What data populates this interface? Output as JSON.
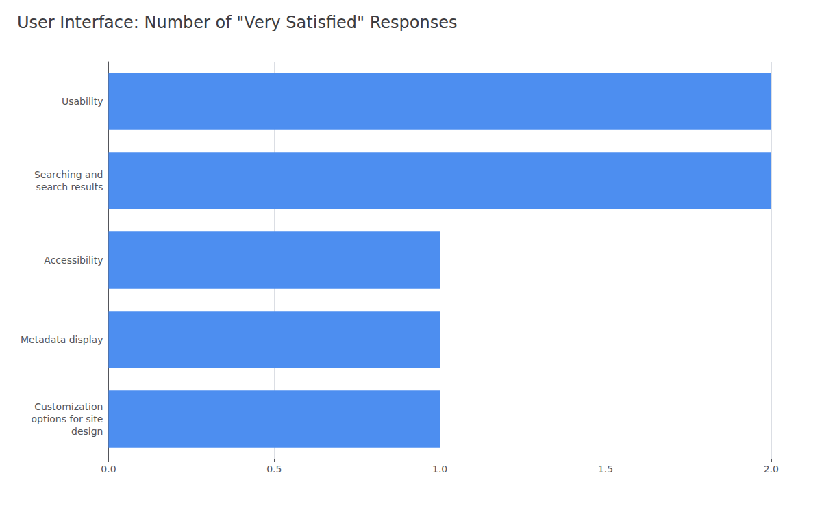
{
  "chart_data": {
    "type": "bar",
    "orientation": "horizontal",
    "title": "User Interface: Number of \"Very Satisfied\" Responses",
    "categories": [
      "Customization\noptions for site\ndesign",
      "Metadata display",
      "Accessibility",
      "Searching and\nsearch results",
      "Usability"
    ],
    "values": [
      1,
      1,
      1,
      2,
      2
    ],
    "color": "#4d8ef0",
    "xlim": [
      0,
      2.05
    ],
    "xticks": [
      {
        "value": 0,
        "label": "0.0"
      },
      0.5,
      {
        "value": 1,
        "label": "1.0"
      },
      1.5,
      {
        "value": 2,
        "label": "2.0"
      }
    ],
    "grid": true
  }
}
